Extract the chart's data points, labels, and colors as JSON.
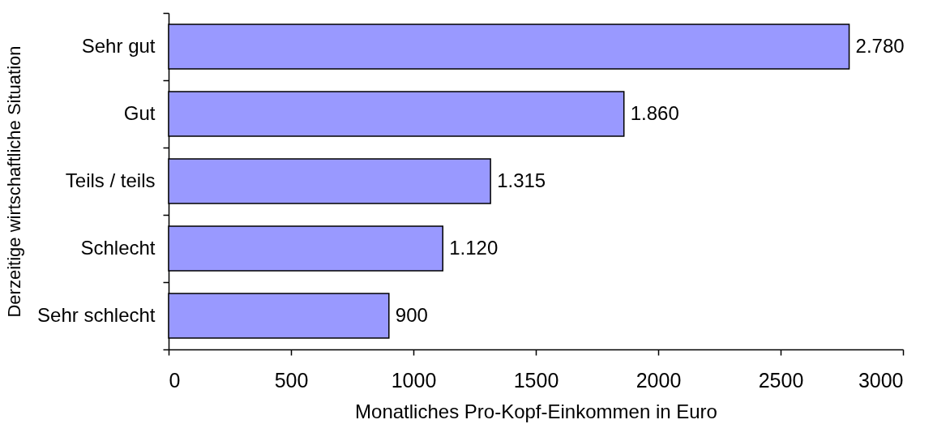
{
  "chart_data": {
    "type": "bar",
    "orientation": "horizontal",
    "xlabel": "Monatliches Pro-Kopf-Einkommen in Euro",
    "ylabel": "Derzeitige wirtschaftliche Situation",
    "categories": [
      "Sehr gut",
      "Gut",
      "Teils / teils",
      "Schlecht",
      "Sehr schlecht"
    ],
    "values": [
      2780,
      1860,
      1315,
      1120,
      900
    ],
    "value_labels": [
      "2.780",
      "1.860",
      "1.315",
      "1.120",
      "900"
    ],
    "color": "#9999ff",
    "xlim": [
      0,
      3000
    ],
    "xticks": [
      0,
      500,
      1000,
      1500,
      2000,
      2500,
      3000
    ],
    "grid": false
  }
}
